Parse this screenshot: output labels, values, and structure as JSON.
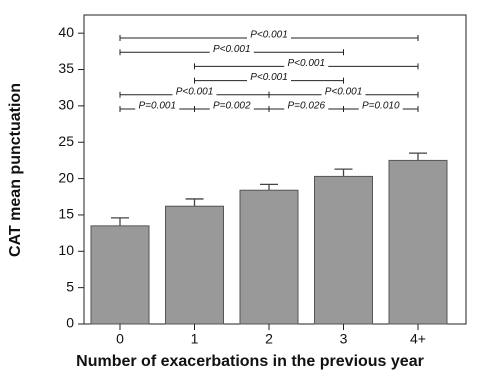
{
  "chart_data": {
    "type": "bar",
    "xlabel": "Number of exacerbations in the previous year",
    "ylabel": "CAT mean punctuation",
    "categories": [
      "0",
      "1",
      "2",
      "3",
      "4+"
    ],
    "values": [
      13.5,
      16.2,
      18.4,
      20.3,
      22.5
    ],
    "errors": [
      1.1,
      1.0,
      0.8,
      1.0,
      1.0
    ],
    "color": "#999999",
    "ylim": [
      0,
      42.5
    ],
    "yticks": [
      0,
      5,
      10,
      15,
      20,
      25,
      30,
      35,
      40
    ],
    "brackets": [
      [
        {
          "from": "0",
          "to": "4+",
          "label": "P<0.001"
        }
      ],
      [
        {
          "from": "0",
          "to": "3",
          "label": "P<0.001"
        }
      ],
      [
        {
          "from": "1",
          "to": "4+",
          "label": "P<0.001"
        }
      ],
      [
        {
          "from": "1",
          "to": "3",
          "label": "P<0.001"
        }
      ],
      [
        {
          "from": "0",
          "to": "2",
          "label": "P<0.001"
        },
        {
          "from": "2",
          "to": "4+",
          "label": "P<0.001"
        }
      ],
      [
        {
          "from": "0",
          "to": "1",
          "label": "P=0.001"
        },
        {
          "from": "1",
          "to": "2",
          "label": "P=0.002"
        },
        {
          "from": "2",
          "to": "3",
          "label": "P=0.026"
        },
        {
          "from": "3",
          "to": "4+",
          "label": "P=0.010"
        }
      ]
    ]
  }
}
